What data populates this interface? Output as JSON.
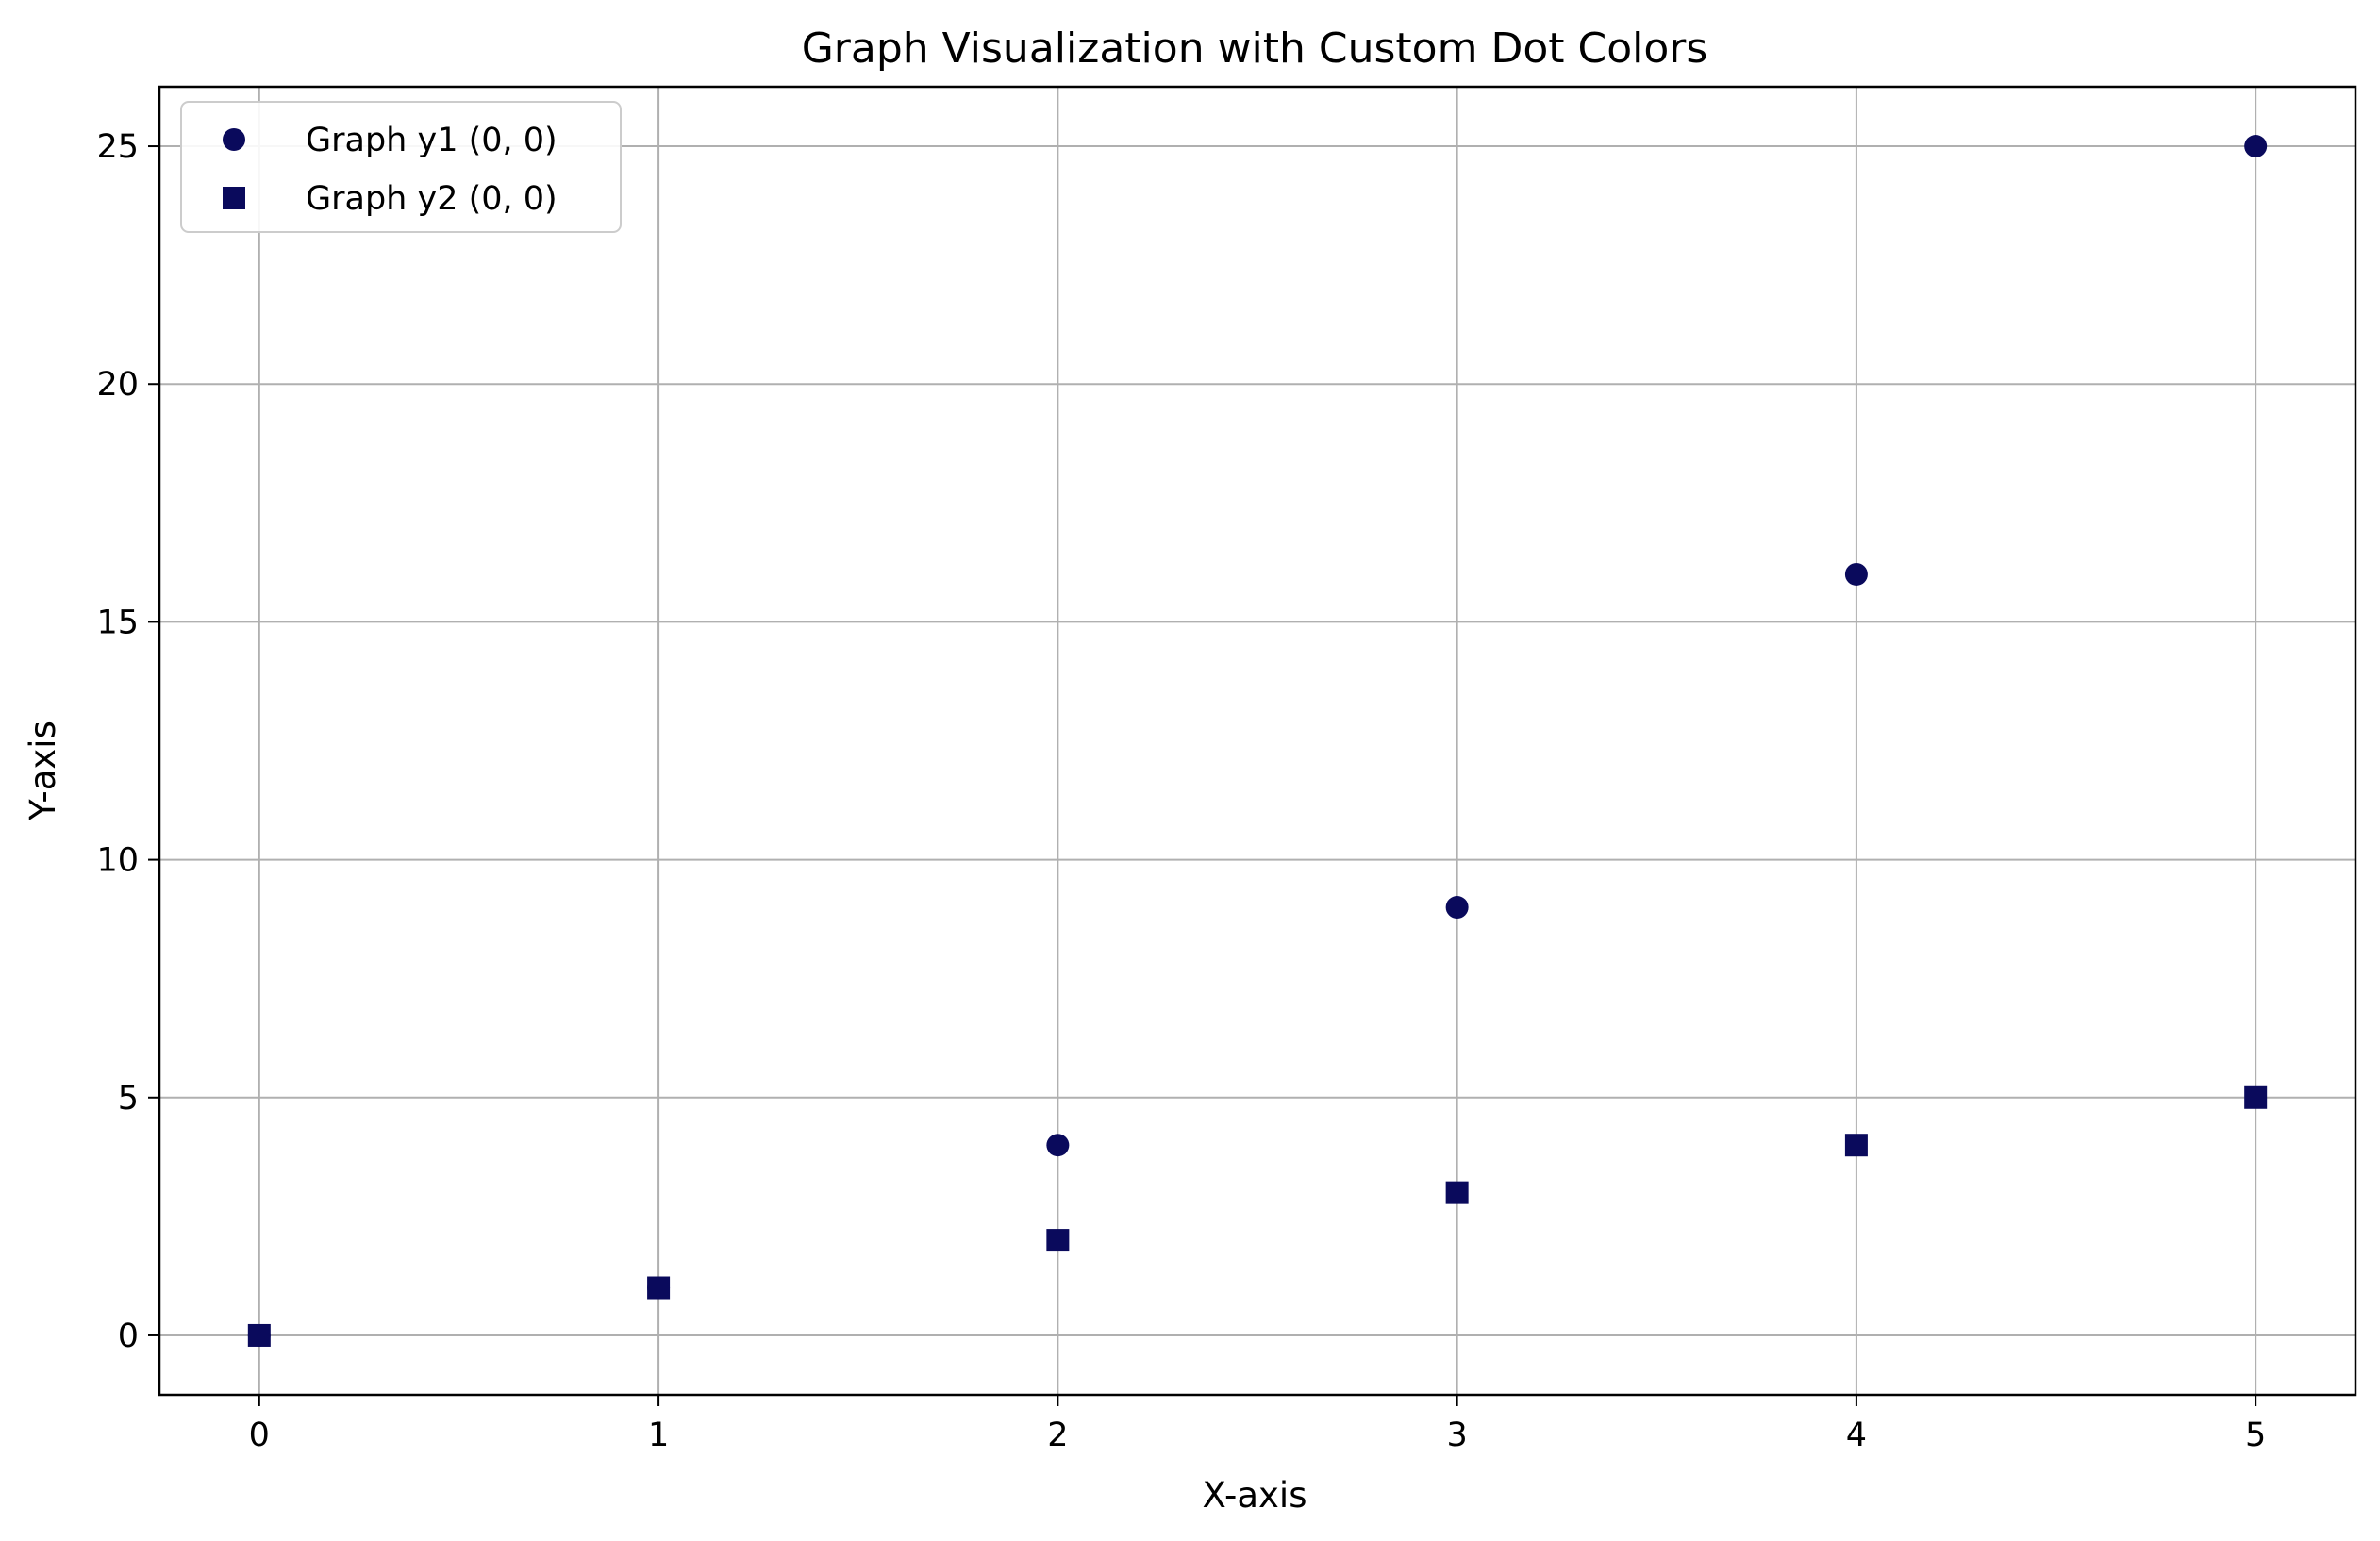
{
  "chart_data": {
    "type": "scatter",
    "title": "Graph Visualization with Custom Dot Colors",
    "xlabel": "X-axis",
    "ylabel": "Y-axis",
    "xlim": [
      -0.25,
      5.25
    ],
    "ylim": [
      -1.25,
      26.25
    ],
    "xticks": [
      0,
      1,
      2,
      3,
      4,
      5
    ],
    "xtick_labels": [
      "0",
      "1",
      "2",
      "3",
      "4",
      "5"
    ],
    "yticks": [
      0,
      5,
      10,
      15,
      20,
      25
    ],
    "ytick_labels": [
      "0",
      "5",
      "10",
      "15",
      "20",
      "25"
    ],
    "grid": true,
    "legend_position": "top-left",
    "series": [
      {
        "name": "Graph y1 (0, 0)",
        "marker": "circle",
        "color": "#0a0a5c",
        "x": [
          0,
          1,
          2,
          3,
          4,
          5
        ],
        "y": [
          0,
          1,
          4,
          9,
          16,
          25
        ]
      },
      {
        "name": "Graph y2 (0, 0)",
        "marker": "square",
        "color": "#0a0a5c",
        "x": [
          0,
          1,
          2,
          3,
          4,
          5
        ],
        "y": [
          0,
          1,
          2,
          3,
          4,
          5
        ]
      }
    ]
  }
}
